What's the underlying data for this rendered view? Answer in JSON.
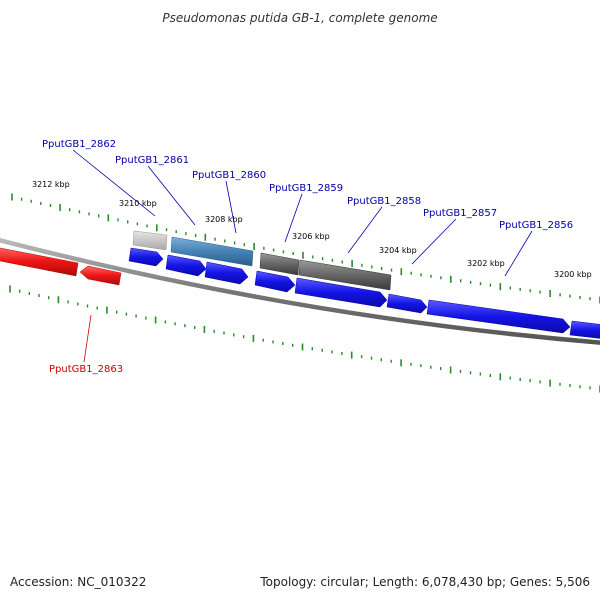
{
  "title": "Pseudomonas putida GB-1, complete genome",
  "footer": {
    "accession": "Accession: NC_010322",
    "topology": "Topology: circular; Length: 6,078,430 bp; Genes: 5,506"
  },
  "ticks": [
    "3212 kbp",
    "3210 kbp",
    "3208 kbp",
    "3206 kbp",
    "3204 kbp",
    "3202 kbp",
    "3200 kbp"
  ],
  "genes": [
    {
      "label": "PputGB1_2862"
    },
    {
      "label": "PputGB1_2861"
    },
    {
      "label": "PputGB1_2860"
    },
    {
      "label": "PputGB1_2859"
    },
    {
      "label": "PputGB1_2858"
    },
    {
      "label": "PputGB1_2857"
    },
    {
      "label": "PputGB1_2856"
    },
    {
      "label": "PputGB1_2863"
    }
  ],
  "colors": {
    "forward_gene": "#1010e8",
    "reverse_gene": "#e81010",
    "label_forward": "#0000aa",
    "label_reverse": "#cc0000",
    "tick": "#2a8a2a",
    "backbone": "#777777"
  }
}
